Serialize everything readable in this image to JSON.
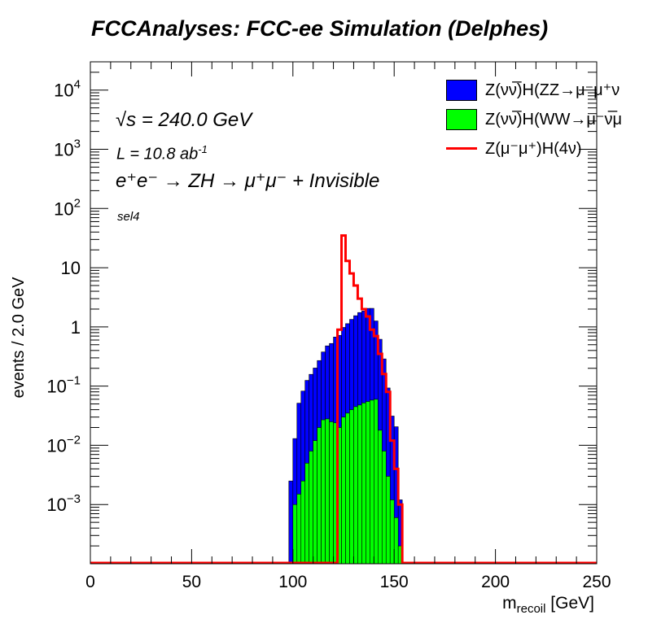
{
  "chart_data": {
    "type": "bar",
    "title": "FCCAnalyses: FCC-ee Simulation (Delphes)",
    "xlabel": "m_recoil [GeV]",
    "xlabel_main": "m",
    "xlabel_sub": "recoil",
    "xlabel_unit": " [GeV]",
    "ylabel": "events / 2.0 GeV",
    "xlim": [
      0,
      250
    ],
    "ylim": [
      0.0001,
      30000
    ],
    "yscale": "log",
    "x_ticks": [
      0,
      50,
      100,
      150,
      200,
      250
    ],
    "y_ticks": [
      {
        "value": 0.001,
        "base": "10",
        "exp": "−3"
      },
      {
        "value": 0.01,
        "base": "10",
        "exp": "−2"
      },
      {
        "value": 0.1,
        "base": "10",
        "exp": "−1"
      },
      {
        "value": 1,
        "base": "1",
        "exp": ""
      },
      {
        "value": 10,
        "base": "10",
        "exp": ""
      },
      {
        "value": 100,
        "base": "10",
        "exp": "2"
      },
      {
        "value": 1000,
        "base": "10",
        "exp": "3"
      },
      {
        "value": 10000,
        "base": "10",
        "exp": "4"
      }
    ],
    "bin_width": 2.0,
    "annotations": {
      "sqrt_s": "√s = 240.0 GeV",
      "lumi_main": "L = 10.8 ab",
      "lumi_exp": "-1",
      "process": "e⁺e⁻ → ZH → μ⁺μ⁻ + Invisible",
      "selection": "sel4"
    },
    "legend_position": "top-right",
    "series": [
      {
        "name": "Z(νν̅)H(ZZ→μ⁻μ⁺ν",
        "style": "stack",
        "color": "#0000ff",
        "bins": [
          [
            98,
            100,
            0.0025
          ],
          [
            100,
            102,
            0.012
          ],
          [
            102,
            104,
            0.05
          ],
          [
            104,
            106,
            0.08
          ],
          [
            106,
            108,
            0.12
          ],
          [
            108,
            110,
            0.15
          ],
          [
            110,
            112,
            0.19
          ],
          [
            112,
            114,
            0.25
          ],
          [
            114,
            116,
            0.35
          ],
          [
            116,
            118,
            0.45
          ],
          [
            118,
            120,
            0.5
          ],
          [
            120,
            122,
            0.65
          ],
          [
            122,
            124,
            0.7
          ],
          [
            124,
            126,
            0.95
          ],
          [
            126,
            128,
            1.1
          ],
          [
            128,
            130,
            1.3
          ],
          [
            130,
            132,
            1.5
          ],
          [
            132,
            134,
            1.7
          ],
          [
            134,
            136,
            1.8
          ],
          [
            136,
            138,
            2.0
          ],
          [
            138,
            140,
            2.0
          ],
          [
            140,
            142,
            1.2
          ],
          [
            142,
            144,
            0.6
          ],
          [
            144,
            146,
            0.28
          ],
          [
            146,
            148,
            0.09
          ],
          [
            148,
            150,
            0.03
          ],
          [
            150,
            152,
            0.02
          ],
          [
            152,
            154,
            0.001
          ]
        ]
      },
      {
        "name": "Z(νν̅)H(WW→μ⁻ν̅μ",
        "style": "stack",
        "color": "#00ff00",
        "bins": [
          [
            100,
            102,
            0.001
          ],
          [
            102,
            104,
            0.0015
          ],
          [
            104,
            106,
            0.0025
          ],
          [
            106,
            108,
            0.005
          ],
          [
            108,
            110,
            0.008
          ],
          [
            110,
            112,
            0.012
          ],
          [
            112,
            114,
            0.02
          ],
          [
            114,
            116,
            0.027
          ],
          [
            116,
            118,
            0.028
          ],
          [
            118,
            120,
            0.025
          ],
          [
            120,
            122,
            0.024
          ],
          [
            122,
            124,
            0.02
          ],
          [
            124,
            126,
            0.03
          ],
          [
            126,
            128,
            0.035
          ],
          [
            128,
            130,
            0.04
          ],
          [
            130,
            132,
            0.045
          ],
          [
            132,
            134,
            0.048
          ],
          [
            134,
            136,
            0.052
          ],
          [
            136,
            138,
            0.055
          ],
          [
            138,
            140,
            0.058
          ],
          [
            140,
            142,
            0.06
          ],
          [
            142,
            144,
            0.018
          ],
          [
            144,
            146,
            0.008
          ],
          [
            146,
            148,
            0.003
          ],
          [
            148,
            150,
            0.0012
          ],
          [
            150,
            152,
            0.0006
          ],
          [
            152,
            154,
            0.0002
          ]
        ]
      },
      {
        "name": "Z(μ⁻μ⁺)H(4ν)",
        "style": "line",
        "color": "#ff0000",
        "bins": [
          [
            122,
            124,
            0.9
          ],
          [
            124,
            126,
            35
          ],
          [
            126,
            128,
            13
          ],
          [
            128,
            130,
            8
          ],
          [
            130,
            132,
            5
          ],
          [
            132,
            134,
            3
          ],
          [
            134,
            136,
            2.0
          ],
          [
            136,
            138,
            1.5
          ],
          [
            138,
            140,
            0.9
          ],
          [
            140,
            142,
            0.7
          ],
          [
            142,
            144,
            0.35
          ],
          [
            144,
            146,
            0.16
          ],
          [
            146,
            148,
            0.08
          ],
          [
            148,
            150,
            0.012
          ],
          [
            150,
            152,
            0.004
          ],
          [
            152,
            154,
            0.001
          ]
        ]
      }
    ]
  }
}
